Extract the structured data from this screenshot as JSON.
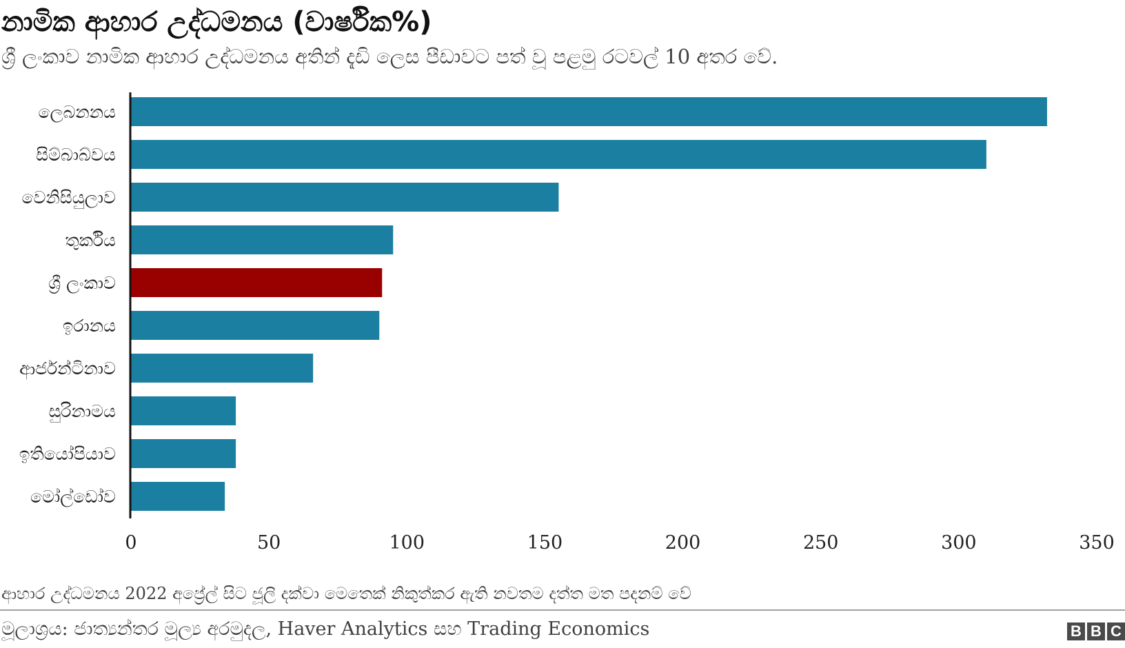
{
  "header": {
    "title": "නාමික ආහාර උද්ධමනය (වාර්ෂික%)",
    "subtitle": "ශ්‍රී ලංකාව නාමික ආහාර උද්ධමනය අතින් දැඩි ලෙස පීඩාවට පත් වූ පළමු රටවල් 10 අතර වේ."
  },
  "footer": {
    "note": "ආහාර උද්ධමනය 2022 අප්‍රේල් සිට ජූලි දක්වා මෙතෙක් නිකුත්කර ඇති නවතම දත්ත මත පදනම් වේ",
    "source": "මූලාශ්‍රය: ජාත්‍යන්තර මූල්‍ය අරමුදල, Haver Analytics සහ Trading Economics",
    "logo_letters": [
      "B",
      "B",
      "C"
    ]
  },
  "colors": {
    "bar": "#1a7fa0",
    "highlight": "#990000",
    "axis": "#111111",
    "text": "#222222"
  },
  "chart_data": {
    "type": "bar",
    "orientation": "horizontal",
    "categories": [
      "ලෙබනනය",
      "සිම්බාබ්වය",
      "වෙනිසියුලාව",
      "තුර්කිය",
      "ශ්‍රී ලංකාව",
      "ඉරානය",
      "ආර්ජන්ටිනාව",
      "සුරිනාමය",
      "ඉතියෝපියාව",
      "මෝල්ඩෝව"
    ],
    "values": [
      332,
      310,
      155,
      95,
      91,
      90,
      66,
      38,
      38,
      34
    ],
    "highlight_index": 4,
    "xlim": [
      0,
      350
    ],
    "xticks": [
      0,
      50,
      100,
      150,
      200,
      250,
      300,
      350
    ],
    "grid": false,
    "legend": "none",
    "title": "නාමික ආහාර උද්ධමනය (වාර්ෂික%)",
    "xlabel": "",
    "ylabel": ""
  }
}
